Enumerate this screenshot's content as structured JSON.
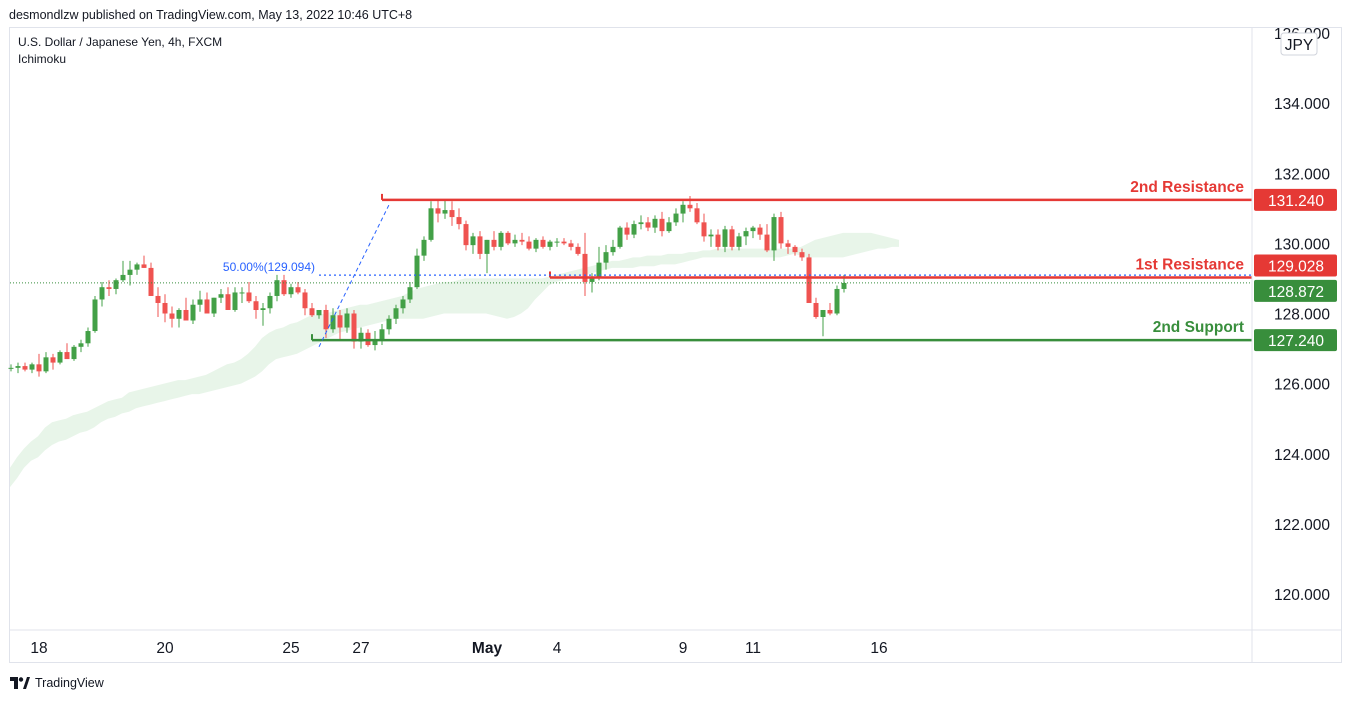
{
  "publisher_line": "desmondlzw published on TradingView.com, May 13, 2022 10:46 UTC+8",
  "symbol_title": "U.S. Dollar / Japanese Yen, 4h, FXCM",
  "indicator_name": "Ichimoku",
  "currency_label": "JPY",
  "footer_brand": "TradingView",
  "colors": {
    "up": "#43a047",
    "down": "#ef5350",
    "resistance": "#e53935",
    "support": "#388e3c",
    "cloud": "#e8f5e9",
    "fib": "#2962ff",
    "price_box_current": "#388e3c"
  },
  "chart_data": {
    "type": "candlestick",
    "ylim": [
      118.5,
      136.3
    ],
    "y_ticks": [
      "120.000",
      "122.000",
      "124.000",
      "126.000",
      "128.000",
      "130.000",
      "132.000",
      "134.000",
      "136.000"
    ],
    "x_ticks": [
      {
        "label": "18",
        "bar": 4
      },
      {
        "label": "20",
        "bar": 22
      },
      {
        "label": "25",
        "bar": 40
      },
      {
        "label": "27",
        "bar": 50
      },
      {
        "label": "May",
        "bar": 68,
        "bold": true
      },
      {
        "label": "4",
        "bar": 78
      },
      {
        "label": "9",
        "bar": 96
      },
      {
        "label": "11",
        "bar": 106
      },
      {
        "label": "16",
        "bar": 124
      }
    ],
    "levels": [
      {
        "name": "2nd Resistance",
        "value": 131.24,
        "label": "131.240",
        "color": "resistance",
        "start_bar": 53
      },
      {
        "name": "1st Resistance",
        "value": 129.028,
        "label": "129.028",
        "color": "resistance",
        "start_bar": 77
      },
      {
        "name": "2nd Support",
        "value": 127.24,
        "label": "127.240",
        "color": "support",
        "start_bar": 43
      }
    ],
    "current_price": {
      "value": 128.872,
      "label": "128.872"
    },
    "fib_level": {
      "label": "50.00%(129.094)",
      "value": 129.094,
      "start_bar": 44
    },
    "fib_line": {
      "from_bar": 44,
      "from_value": 127.05,
      "to_bar": 54,
      "to_value": 131.1
    },
    "ohlc": [
      [
        126.45,
        126.55,
        126.35,
        126.45
      ],
      [
        126.45,
        126.6,
        126.3,
        126.5
      ],
      [
        126.5,
        126.6,
        126.35,
        126.4
      ],
      [
        126.4,
        126.6,
        126.3,
        126.55
      ],
      [
        126.55,
        126.85,
        126.2,
        126.35
      ],
      [
        126.35,
        126.9,
        126.3,
        126.75
      ],
      [
        126.75,
        126.85,
        126.4,
        126.6
      ],
      [
        126.6,
        126.95,
        126.55,
        126.9
      ],
      [
        126.9,
        127.15,
        126.75,
        126.7
      ],
      [
        126.7,
        127.1,
        126.65,
        127.05
      ],
      [
        127.05,
        127.25,
        126.9,
        127.15
      ],
      [
        127.15,
        127.6,
        127.05,
        127.5
      ],
      [
        127.5,
        128.5,
        127.45,
        128.4
      ],
      [
        128.4,
        128.9,
        128.2,
        128.75
      ],
      [
        128.75,
        128.95,
        128.5,
        128.7
      ],
      [
        128.7,
        129.0,
        128.55,
        128.95
      ],
      [
        128.95,
        129.5,
        128.9,
        129.1
      ],
      [
        129.1,
        129.5,
        128.8,
        129.25
      ],
      [
        129.25,
        129.45,
        129.1,
        129.4
      ],
      [
        129.4,
        129.65,
        129.3,
        129.3
      ],
      [
        129.3,
        129.45,
        128.5,
        128.5
      ],
      [
        128.5,
        128.75,
        127.9,
        128.3
      ],
      [
        128.3,
        128.55,
        127.75,
        128.0
      ],
      [
        128.0,
        128.2,
        127.6,
        127.85
      ],
      [
        127.85,
        128.15,
        127.6,
        128.1
      ],
      [
        128.1,
        128.45,
        127.95,
        127.8
      ],
      [
        127.8,
        128.4,
        127.7,
        128.25
      ],
      [
        128.25,
        128.65,
        128.05,
        128.4
      ],
      [
        128.4,
        128.6,
        128.1,
        128.0
      ],
      [
        128.0,
        128.45,
        127.9,
        128.45
      ],
      [
        128.45,
        128.7,
        128.3,
        128.55
      ],
      [
        128.55,
        128.75,
        128.1,
        128.1
      ],
      [
        128.1,
        128.75,
        128.05,
        128.6
      ],
      [
        128.6,
        128.75,
        128.3,
        128.6
      ],
      [
        128.6,
        128.9,
        128.3,
        128.35
      ],
      [
        128.35,
        128.5,
        127.85,
        128.1
      ],
      [
        128.1,
        128.3,
        127.65,
        128.15
      ],
      [
        128.15,
        128.6,
        128.0,
        128.5
      ],
      [
        128.5,
        129.1,
        128.35,
        128.95
      ],
      [
        128.95,
        129.1,
        128.5,
        128.55
      ],
      [
        128.55,
        128.85,
        128.45,
        128.75
      ],
      [
        128.75,
        128.9,
        128.55,
        128.6
      ],
      [
        128.6,
        128.7,
        127.95,
        128.15
      ],
      [
        128.15,
        128.3,
        127.9,
        127.95
      ],
      [
        127.95,
        128.1,
        127.85,
        128.1
      ],
      [
        128.1,
        128.25,
        127.3,
        127.55
      ],
      [
        127.55,
        128.15,
        127.45,
        127.95
      ],
      [
        127.95,
        128.1,
        127.25,
        127.6
      ],
      [
        127.6,
        128.15,
        127.45,
        128.0
      ],
      [
        128.0,
        128.1,
        127.0,
        127.2
      ],
      [
        127.2,
        127.6,
        127.0,
        127.45
      ],
      [
        127.45,
        127.55,
        127.05,
        127.1
      ],
      [
        127.1,
        127.5,
        126.95,
        127.25
      ],
      [
        127.25,
        127.7,
        127.1,
        127.55
      ],
      [
        127.55,
        127.95,
        127.4,
        127.85
      ],
      [
        127.85,
        128.25,
        127.7,
        128.15
      ],
      [
        128.15,
        128.5,
        128.0,
        128.4
      ],
      [
        128.4,
        128.9,
        128.3,
        128.75
      ],
      [
        128.75,
        129.85,
        128.7,
        129.65
      ],
      [
        129.65,
        130.2,
        129.5,
        130.1
      ],
      [
        130.1,
        131.2,
        130.05,
        131.0
      ],
      [
        131.0,
        131.25,
        130.6,
        130.85
      ],
      [
        130.85,
        131.25,
        130.7,
        130.95
      ],
      [
        130.95,
        131.2,
        130.5,
        130.75
      ],
      [
        130.75,
        131.0,
        130.4,
        130.55
      ],
      [
        130.55,
        130.65,
        129.8,
        129.95
      ],
      [
        129.95,
        130.3,
        129.7,
        130.2
      ],
      [
        130.2,
        130.35,
        129.55,
        129.7
      ],
      [
        129.7,
        130.1,
        129.15,
        130.1
      ],
      [
        130.1,
        130.35,
        129.8,
        129.9
      ],
      [
        129.9,
        130.35,
        129.8,
        130.3
      ],
      [
        130.3,
        130.35,
        129.95,
        130.0
      ],
      [
        130.0,
        130.25,
        129.9,
        130.1
      ],
      [
        130.1,
        130.3,
        129.95,
        130.05
      ],
      [
        130.05,
        130.2,
        129.8,
        129.85
      ],
      [
        129.85,
        130.15,
        129.75,
        130.1
      ],
      [
        130.1,
        130.2,
        129.85,
        129.9
      ],
      [
        129.9,
        130.1,
        129.8,
        130.05
      ],
      [
        130.05,
        130.15,
        129.9,
        130.05
      ],
      [
        130.05,
        130.15,
        129.95,
        130.0
      ],
      [
        130.0,
        130.1,
        129.8,
        129.9
      ],
      [
        129.9,
        130.0,
        129.65,
        129.7
      ],
      [
        129.7,
        130.3,
        128.5,
        128.9
      ],
      [
        128.9,
        129.15,
        128.6,
        129.0
      ],
      [
        129.0,
        129.9,
        128.95,
        129.45
      ],
      [
        129.45,
        129.95,
        129.25,
        129.75
      ],
      [
        129.75,
        130.1,
        129.65,
        129.9
      ],
      [
        129.9,
        130.5,
        129.85,
        130.45
      ],
      [
        130.45,
        130.6,
        130.1,
        130.25
      ],
      [
        130.25,
        130.65,
        130.15,
        130.55
      ],
      [
        130.55,
        130.8,
        130.4,
        130.6
      ],
      [
        130.6,
        130.75,
        130.35,
        130.45
      ],
      [
        130.45,
        130.8,
        130.3,
        130.7
      ],
      [
        130.7,
        130.9,
        130.2,
        130.35
      ],
      [
        130.35,
        130.75,
        130.3,
        130.6
      ],
      [
        130.6,
        131.0,
        130.5,
        130.85
      ],
      [
        130.85,
        131.2,
        130.6,
        131.1
      ],
      [
        131.1,
        131.35,
        130.9,
        131.0
      ],
      [
        131.0,
        131.15,
        130.55,
        130.6
      ],
      [
        130.6,
        130.85,
        130.05,
        130.2
      ],
      [
        130.2,
        130.4,
        129.9,
        130.25
      ],
      [
        130.25,
        130.4,
        129.8,
        129.9
      ],
      [
        129.9,
        130.5,
        129.75,
        130.4
      ],
      [
        130.4,
        130.5,
        129.8,
        129.9
      ],
      [
        129.9,
        130.3,
        129.8,
        130.2
      ],
      [
        130.2,
        130.45,
        129.95,
        130.35
      ],
      [
        130.35,
        130.5,
        130.15,
        130.45
      ],
      [
        130.45,
        130.55,
        130.1,
        130.25
      ],
      [
        130.25,
        130.55,
        129.75,
        129.8
      ],
      [
        129.8,
        130.85,
        129.5,
        130.75
      ],
      [
        130.75,
        130.9,
        129.85,
        130.0
      ],
      [
        130.0,
        130.1,
        129.7,
        129.9
      ],
      [
        129.9,
        129.95,
        129.65,
        129.75
      ],
      [
        129.75,
        129.85,
        129.5,
        129.6
      ],
      [
        129.6,
        129.7,
        128.35,
        128.3
      ],
      [
        128.3,
        128.45,
        127.85,
        127.9
      ],
      [
        127.9,
        128.1,
        127.35,
        128.1
      ],
      [
        128.1,
        128.3,
        127.95,
        128.0
      ],
      [
        128.0,
        128.8,
        127.95,
        128.7
      ],
      [
        128.7,
        129.1,
        128.6,
        128.87
      ]
    ],
    "cloud": [
      [
        123.05,
        123.6
      ],
      [
        123.3,
        123.9
      ],
      [
        123.6,
        124.15
      ],
      [
        123.8,
        124.35
      ],
      [
        123.9,
        124.5
      ],
      [
        124.1,
        124.75
      ],
      [
        124.25,
        124.9
      ],
      [
        124.35,
        124.95
      ],
      [
        124.4,
        125.0
      ],
      [
        124.5,
        125.1
      ],
      [
        124.6,
        125.15
      ],
      [
        124.65,
        125.2
      ],
      [
        124.75,
        125.3
      ],
      [
        124.9,
        125.4
      ],
      [
        125.0,
        125.5
      ],
      [
        125.05,
        125.55
      ],
      [
        125.15,
        125.6
      ],
      [
        125.2,
        125.75
      ],
      [
        125.3,
        125.8
      ],
      [
        125.35,
        125.85
      ],
      [
        125.4,
        125.9
      ],
      [
        125.45,
        125.95
      ],
      [
        125.5,
        126.0
      ],
      [
        125.55,
        126.05
      ],
      [
        125.6,
        126.1
      ],
      [
        125.65,
        126.1
      ],
      [
        125.7,
        126.15
      ],
      [
        125.7,
        126.2
      ],
      [
        125.75,
        126.25
      ],
      [
        125.8,
        126.35
      ],
      [
        125.85,
        126.45
      ],
      [
        125.9,
        126.55
      ],
      [
        125.95,
        126.6
      ],
      [
        126.0,
        126.7
      ],
      [
        126.1,
        126.85
      ],
      [
        126.2,
        127.05
      ],
      [
        126.35,
        127.3
      ],
      [
        126.55,
        127.45
      ],
      [
        126.7,
        127.55
      ],
      [
        126.75,
        127.6
      ],
      [
        126.8,
        127.7
      ],
      [
        126.85,
        127.75
      ],
      [
        126.95,
        127.85
      ],
      [
        127.05,
        127.95
      ],
      [
        127.15,
        127.95
      ],
      [
        127.25,
        128.0
      ],
      [
        127.35,
        128.05
      ],
      [
        127.45,
        128.1
      ],
      [
        127.5,
        128.15
      ],
      [
        127.55,
        128.2
      ],
      [
        127.6,
        128.25
      ],
      [
        127.65,
        128.25
      ],
      [
        127.7,
        128.3
      ],
      [
        127.75,
        128.35
      ],
      [
        127.8,
        128.4
      ],
      [
        127.85,
        128.45
      ],
      [
        127.85,
        128.5
      ],
      [
        127.85,
        128.6
      ],
      [
        127.85,
        128.7
      ],
      [
        127.85,
        128.75
      ],
      [
        127.9,
        128.8
      ],
      [
        127.95,
        128.85
      ],
      [
        128.0,
        128.9
      ],
      [
        128.0,
        128.9
      ],
      [
        128.0,
        128.95
      ],
      [
        128.0,
        129.0
      ],
      [
        128.0,
        129.0
      ],
      [
        128.0,
        129.0
      ],
      [
        128.0,
        129.0
      ],
      [
        127.95,
        129.0
      ],
      [
        127.9,
        129.0
      ],
      [
        127.85,
        129.0
      ],
      [
        127.9,
        129.0
      ],
      [
        128.0,
        129.0
      ],
      [
        128.15,
        129.0
      ],
      [
        128.4,
        129.0
      ],
      [
        128.6,
        129.0
      ],
      [
        128.8,
        129.05
      ],
      [
        128.9,
        129.1
      ],
      [
        128.95,
        129.15
      ],
      [
        129.0,
        129.2
      ],
      [
        129.05,
        129.25
      ],
      [
        129.1,
        129.3
      ],
      [
        129.15,
        129.35
      ],
      [
        129.2,
        129.4
      ],
      [
        129.25,
        129.45
      ],
      [
        129.3,
        129.5
      ],
      [
        129.3,
        129.5
      ],
      [
        129.3,
        129.55
      ],
      [
        129.3,
        129.6
      ],
      [
        129.35,
        129.6
      ],
      [
        129.35,
        129.65
      ],
      [
        129.35,
        129.65
      ],
      [
        129.4,
        129.65
      ],
      [
        129.4,
        129.7
      ],
      [
        129.4,
        129.7
      ],
      [
        129.45,
        129.7
      ],
      [
        129.5,
        129.75
      ],
      [
        129.55,
        129.75
      ],
      [
        129.6,
        129.8
      ],
      [
        129.6,
        129.8
      ],
      [
        129.6,
        129.85
      ],
      [
        129.6,
        129.85
      ],
      [
        129.6,
        129.85
      ],
      [
        129.6,
        129.85
      ],
      [
        129.6,
        129.85
      ],
      [
        129.6,
        129.85
      ],
      [
        129.6,
        129.85
      ],
      [
        129.6,
        129.85
      ],
      [
        129.6,
        129.85
      ],
      [
        129.6,
        129.85
      ],
      [
        129.65,
        129.85
      ],
      [
        129.7,
        129.85
      ],
      [
        129.65,
        129.9
      ],
      [
        129.6,
        130.0
      ],
      [
        129.6,
        130.1
      ],
      [
        129.6,
        130.15
      ],
      [
        129.6,
        130.2
      ],
      [
        129.6,
        130.25
      ],
      [
        129.6,
        130.3
      ],
      [
        129.65,
        130.3
      ],
      [
        129.7,
        130.3
      ],
      [
        129.75,
        130.3
      ],
      [
        129.8,
        130.3
      ],
      [
        129.85,
        130.25
      ],
      [
        129.85,
        130.2
      ],
      [
        129.9,
        130.15
      ],
      [
        129.9,
        130.1
      ]
    ]
  }
}
